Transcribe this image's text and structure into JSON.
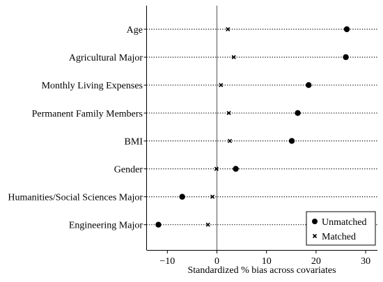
{
  "chart_data": {
    "type": "scatter",
    "title": "",
    "xlabel": "Standardized % bias across covariates",
    "ylabel": "",
    "xlim": [
      -13,
      32
    ],
    "x_ticks": [
      -10,
      0,
      10,
      20,
      30
    ],
    "x_tick_labels": [
      "−10",
      "0",
      "10",
      "20",
      "30"
    ],
    "reference_line_x": 0,
    "legend_position": "bottom-right",
    "categories": [
      "Age",
      "Agricultural Major",
      "Monthly Living Expenses",
      "Permanent Family Members",
      "BMI",
      "Gender",
      "Humanities/Social Sciences Major",
      "Engineering Major"
    ],
    "series": [
      {
        "name": "Unmatched",
        "marker": "filled-circle",
        "values": [
          26.2,
          26.0,
          18.5,
          16.3,
          15.1,
          3.8,
          -7.0,
          -11.8
        ]
      },
      {
        "name": "Matched",
        "marker": "x",
        "values": [
          2.2,
          3.4,
          0.8,
          2.4,
          2.6,
          -0.1,
          -0.9,
          -1.8
        ]
      }
    ]
  }
}
